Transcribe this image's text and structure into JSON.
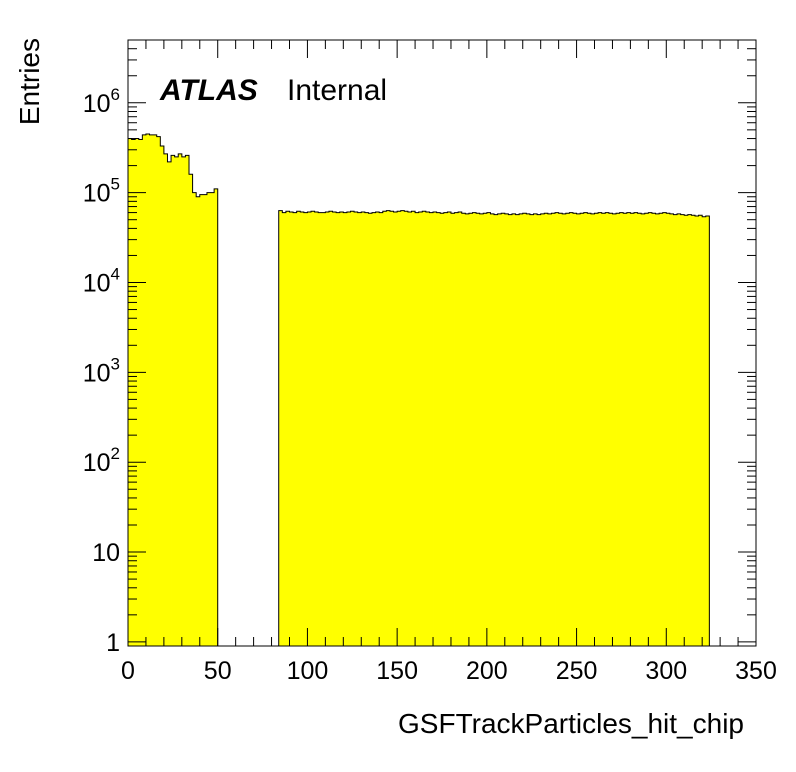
{
  "chart_data": {
    "type": "histogram",
    "xlabel": "GSFTrackParticles_hit_chip",
    "ylabel": "Entries",
    "experiment_label": "ATLAS",
    "status_label": "Internal",
    "xlim": [
      0,
      350
    ],
    "ylim": [
      0.9,
      5000000
    ],
    "y_scale": "log",
    "x_ticks": [
      0,
      50,
      100,
      150,
      200,
      250,
      300,
      350
    ],
    "x_tick_labels": [
      "0",
      "50",
      "100",
      "150",
      "200",
      "250",
      "300",
      "350"
    ],
    "y_ticks": [
      1,
      10,
      100,
      1000,
      10000,
      100000,
      1000000
    ],
    "y_tick_labels": [
      {
        "base": "1",
        "exp": ""
      },
      {
        "base": "10",
        "exp": ""
      },
      {
        "base": "10",
        "exp": "2"
      },
      {
        "base": "10",
        "exp": "3"
      },
      {
        "base": "10",
        "exp": "4"
      },
      {
        "base": "10",
        "exp": "5"
      },
      {
        "base": "10",
        "exp": "6"
      }
    ],
    "fill_color": "#ffff00",
    "line_color": "#000000",
    "segments": [
      {
        "x_start": 0,
        "bin_width": 2,
        "values": [
          400000,
          390000,
          400000,
          390000,
          440000,
          450000,
          440000,
          440000,
          420000,
          330000,
          270000,
          220000,
          260000,
          250000,
          270000,
          250000,
          260000,
          160000,
          100000,
          90000,
          95000,
          95000,
          100000,
          100000,
          110000
        ]
      },
      {
        "x_start": 84,
        "bin_width": 2,
        "values": [
          63000,
          60000,
          62000,
          61000,
          60000,
          62000,
          61000,
          60000,
          61000,
          62000,
          61000,
          60000,
          60000,
          61000,
          62000,
          61000,
          60000,
          61000,
          60000,
          61000,
          62000,
          61000,
          60000,
          61000,
          60000,
          59000,
          60000,
          61000,
          60000,
          62000,
          63000,
          62000,
          61000,
          62000,
          63000,
          62000,
          61000,
          62000,
          60000,
          61000,
          62000,
          61000,
          60000,
          61000,
          60000,
          59000,
          60000,
          61000,
          59000,
          60000,
          61000,
          59000,
          58000,
          59000,
          60000,
          59000,
          58000,
          59000,
          60000,
          58000,
          57000,
          58000,
          59000,
          58000,
          57000,
          58000,
          57000,
          58000,
          59000,
          58000,
          57000,
          58000,
          57000,
          58000,
          59000,
          58000,
          59000,
          60000,
          59000,
          58000,
          59000,
          60000,
          59000,
          58000,
          59000,
          60000,
          59000,
          58000,
          59000,
          60000,
          59000,
          60000,
          59000,
          58000,
          59000,
          60000,
          59000,
          60000,
          59000,
          60000,
          59000,
          58000,
          59000,
          60000,
          59000,
          58000,
          59000,
          60000,
          59000,
          58000,
          57000,
          58000,
          57000,
          56000,
          57000,
          56000,
          55000,
          56000,
          54000,
          55000
        ]
      }
    ]
  }
}
